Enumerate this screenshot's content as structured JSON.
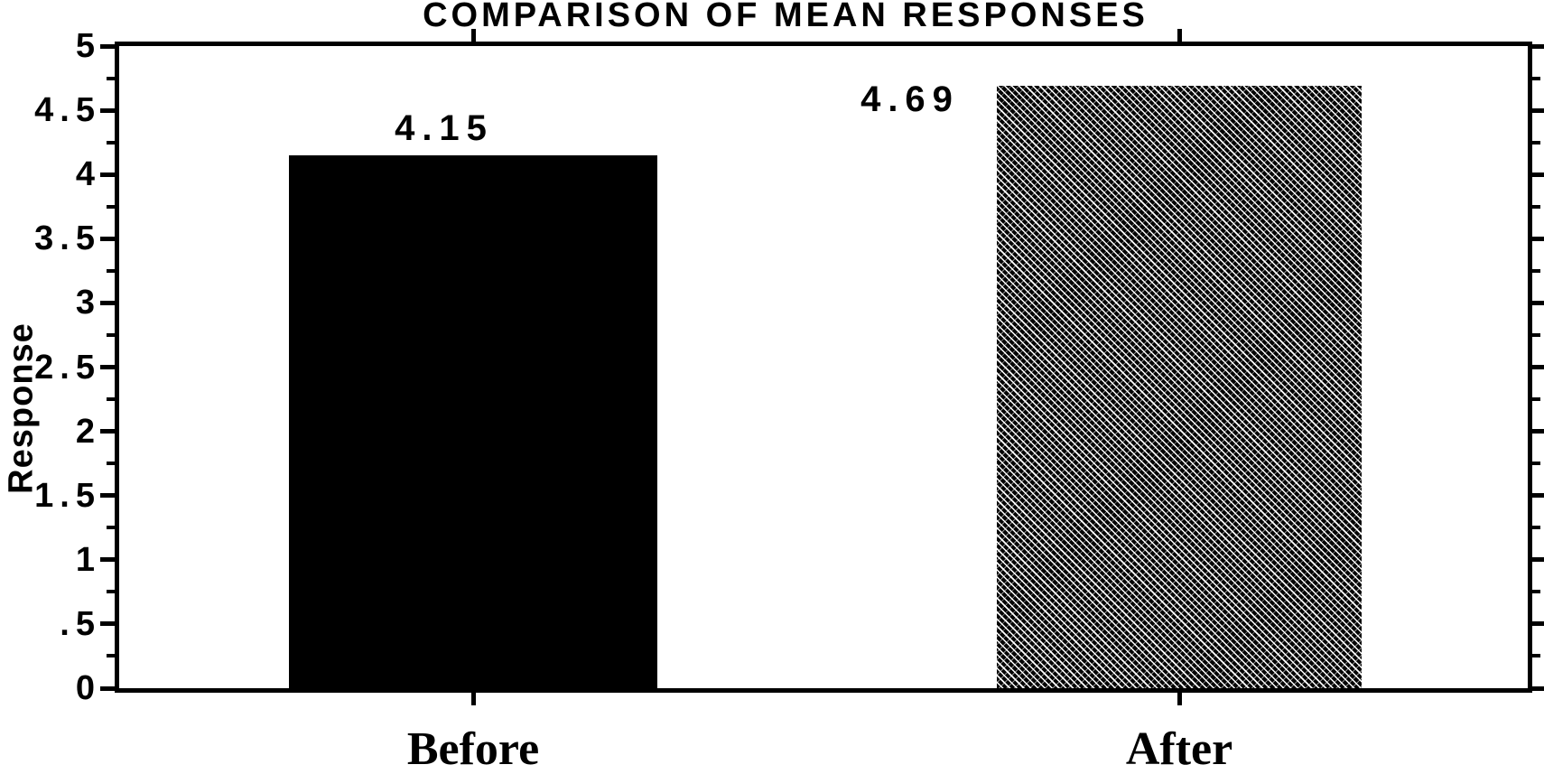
{
  "figure": {
    "background": "#ffffff",
    "foreground": "#000000"
  },
  "chart_data": {
    "type": "bar",
    "title": "COMPARISON OF MEAN RESPONSES",
    "xlabel": "",
    "ylabel": "Response",
    "categories": [
      "Before",
      "After"
    ],
    "values": [
      4.15,
      4.69
    ],
    "value_labels": [
      "4.15",
      "4.69"
    ],
    "ylim": [
      0,
      5
    ],
    "ytick_step": 0.5,
    "ytick_minor_step": 0.25,
    "ytick_labels": [
      "0",
      ".5",
      "1",
      "1.5",
      "2",
      "2.5",
      "3",
      "3.5",
      "4",
      "4.5",
      "5"
    ],
    "grid": false,
    "legend": "none",
    "bar_styles": [
      {
        "category": "Before",
        "fill": "solid",
        "color": "#000000"
      },
      {
        "category": "After",
        "fill": "diagonal-hatch",
        "color": "#000000"
      }
    ]
  }
}
